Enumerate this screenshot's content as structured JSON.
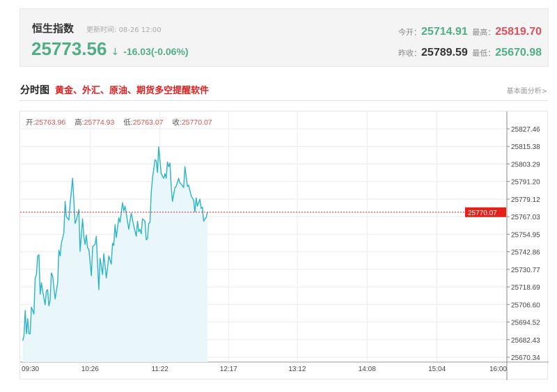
{
  "quote": {
    "name": "恒生指数",
    "update_label": "更新时间:",
    "update_time": "08-26 12:00",
    "price": "25773.56",
    "direction_icon": "arrow-down",
    "arrow": "↓",
    "change": "-16.03(-0.06%)",
    "open_label": "今开：",
    "open": "25714.91",
    "high_label": "最高：",
    "high": "25819.70",
    "prev_close_label": "昨收：",
    "prev_close": "25789.59",
    "low_label": "最低：",
    "low": "25670.98"
  },
  "section": {
    "title": "分时图",
    "promo_link": "黄金、外汇、原油、期货多空提醒软件",
    "analysis_link": "基本面分析>"
  },
  "ohlc": {
    "open_label": "开:",
    "open": "25763.96",
    "high_label": "高:",
    "high": "25774.93",
    "low_label": "低:",
    "low": "25763.07",
    "close_label": "收:",
    "close": "25770.07"
  },
  "colors": {
    "up": "#e0505a",
    "down": "#4fae86",
    "line": "#2bb3c6",
    "fill": "#e9f7fb",
    "current": "#e8201a"
  },
  "chart_data": {
    "type": "area",
    "x_ticks": [
      "09:30",
      "10:26",
      "11:22",
      "12:17",
      "13:12",
      "14:08",
      "15:04",
      "16:00"
    ],
    "x_range": [
      "09:30",
      "16:00"
    ],
    "y_ticks": [
      25827.46,
      25815.38,
      25803.29,
      25791.2,
      25779.12,
      25767.03,
      25754.95,
      25742.86,
      25730.77,
      25718.69,
      25706.6,
      25694.52,
      25682.43,
      25670.34
    ],
    "ylim": [
      25670.34,
      25827.46
    ],
    "current_price": 25770.07,
    "current_price_label": "25770.07",
    "grid": true,
    "points": [
      [
        "09:32",
        25681.68
      ],
      [
        "09:33",
        25684.87
      ],
      [
        "09:34",
        25702.44
      ],
      [
        "09:35",
        25686.47
      ],
      [
        "09:36",
        25696.85
      ],
      [
        "09:37",
        25686.47
      ],
      [
        "09:38",
        25686.47
      ],
      [
        "09:39",
        25704.83
      ],
      [
        "09:41",
        25700.04
      ],
      [
        "09:42",
        25724.79
      ],
      [
        "09:43",
        25727.19
      ],
      [
        "09:44",
        25739.96
      ],
      [
        "09:45",
        25740.76
      ],
      [
        "09:46",
        25713.62
      ],
      [
        "09:47",
        25721.6
      ],
      [
        "09:48",
        25716.01
      ],
      [
        "09:50",
        25706.43
      ],
      [
        "09:51",
        25716.01
      ],
      [
        "09:52",
        25716.81
      ],
      [
        "09:53",
        25705.63
      ],
      [
        "09:54",
        25709.62
      ],
      [
        "09:55",
        25728.3
      ],
      [
        "09:56",
        25726.39
      ],
      [
        "09:58",
        25710.42
      ],
      [
        "10:00",
        25721.6
      ],
      [
        "10:01",
        25743.95
      ],
      [
        "10:02",
        25739.96
      ],
      [
        "10:03",
        25748.74
      ],
      [
        "10:05",
        25755.93
      ],
      [
        "10:06",
        25777.48
      ],
      [
        "10:07",
        25767.1
      ],
      [
        "10:09",
        25764.7
      ],
      [
        "10:10",
        25775.89
      ],
      [
        "10:12",
        25793.45
      ],
      [
        "10:14",
        25762.32
      ],
      [
        "10:15",
        25764.7
      ],
      [
        "10:17",
        25771.9
      ],
      [
        "10:18",
        25743.16
      ],
      [
        "10:20",
        25765.51
      ],
      [
        "10:21",
        25753.53
      ],
      [
        "10:22",
        25747.95
      ],
      [
        "10:23",
        25754.33
      ],
      [
        "10:24",
        25745.55
      ],
      [
        "10:25",
        25744.75
      ],
      [
        "10:27",
        25726.39
      ],
      [
        "10:28",
        25746.35
      ],
      [
        "10:30",
        25747.95
      ],
      [
        "10:31",
        25753.53
      ],
      [
        "10:33",
        25716.81
      ],
      [
        "10:34",
        25738.37
      ],
      [
        "10:36",
        25727.19
      ],
      [
        "10:37",
        25741.56
      ],
      [
        "10:39",
        25724.79
      ],
      [
        "10:41",
        25739.96
      ],
      [
        "10:43",
        25734.37
      ],
      [
        "10:44",
        25748.74
      ],
      [
        "10:45",
        25747.14
      ],
      [
        "10:46",
        25761.52
      ],
      [
        "10:47",
        25752.74
      ],
      [
        "10:49",
        25766.3
      ],
      [
        "10:50",
        25763.11
      ],
      [
        "10:52",
        25776.68
      ],
      [
        "10:53",
        25771.1
      ],
      [
        "10:54",
        25774.29
      ],
      [
        "10:55",
        25769.5
      ],
      [
        "10:57",
        25758.32
      ],
      [
        "10:58",
        25763.91
      ],
      [
        "10:59",
        25769.5
      ],
      [
        "11:01",
        25760.72
      ],
      [
        "11:03",
        25753.53
      ],
      [
        "11:04",
        25763.91
      ],
      [
        "11:05",
        25756.73
      ],
      [
        "11:06",
        25758.32
      ],
      [
        "11:07",
        25755.13
      ],
      [
        "11:08",
        25765.51
      ],
      [
        "11:10",
        25763.91
      ],
      [
        "11:11",
        25751.14
      ],
      [
        "11:12",
        25751.94
      ],
      [
        "11:13",
        25762.32
      ],
      [
        "11:14",
        25763.0
      ],
      [
        "11:15",
        25783.87
      ],
      [
        "11:16",
        25793.45
      ],
      [
        "11:18",
        25806.22
      ],
      [
        "11:19",
        25805.43
      ],
      [
        "11:20",
        25797.44
      ],
      [
        "11:21",
        25815.0
      ],
      [
        "11:22",
        25806.22
      ],
      [
        "11:23",
        25796.64
      ],
      [
        "11:24",
        25795.05
      ],
      [
        "11:25",
        25793.45
      ],
      [
        "11:26",
        25796.64
      ],
      [
        "11:27",
        25793.45
      ],
      [
        "11:28",
        25804.63
      ],
      [
        "11:29",
        25801.43
      ],
      [
        "11:30",
        25803.83
      ],
      [
        "11:31",
        25787.86
      ],
      [
        "11:32",
        25777.48
      ],
      [
        "11:34",
        25787.06
      ],
      [
        "11:35",
        25787.86
      ],
      [
        "11:37",
        25793.45
      ],
      [
        "11:38",
        25790.26
      ],
      [
        "11:39",
        25789.46
      ],
      [
        "11:41",
        25787.06
      ],
      [
        "11:42",
        25801.43
      ],
      [
        "11:44",
        25787.86
      ],
      [
        "11:45",
        25788.66
      ],
      [
        "11:47",
        25781.47
      ],
      [
        "11:49",
        25778.28
      ],
      [
        "11:50",
        25770.3
      ],
      [
        "11:51",
        25779.88
      ],
      [
        "11:52",
        25774.29
      ],
      [
        "11:54",
        25779.08
      ],
      [
        "11:55",
        25772.69
      ],
      [
        "11:56",
        25773.49
      ],
      [
        "11:57",
        25763.91
      ],
      [
        "11:58",
        25765.51
      ],
      [
        "11:59",
        25766.3
      ],
      [
        "12:00",
        25770.07
      ]
    ]
  }
}
